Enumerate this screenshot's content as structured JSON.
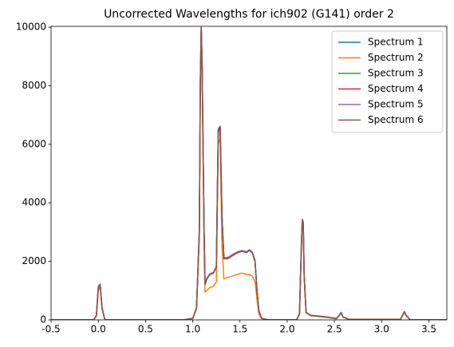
{
  "chart_data": {
    "type": "line",
    "title": "Uncorrected Wavelengths for ich902 (G141) order 2",
    "x": [
      -0.5,
      -0.05,
      -0.02,
      0.0,
      0.02,
      0.04,
      0.07,
      0.9,
      1.0,
      1.04,
      1.07,
      1.08,
      1.09,
      1.1,
      1.12,
      1.13,
      1.15,
      1.18,
      1.22,
      1.25,
      1.27,
      1.29,
      1.31,
      1.33,
      1.37,
      1.42,
      1.47,
      1.52,
      1.57,
      1.6,
      1.63,
      1.66,
      1.68,
      1.7,
      1.73,
      1.8,
      2.1,
      2.13,
      2.15,
      2.16,
      2.17,
      2.18,
      2.2,
      2.25,
      2.35,
      2.45,
      2.52,
      2.55,
      2.57,
      2.59,
      2.65,
      3.2,
      3.22,
      3.24,
      3.26,
      3.3,
      3.69
    ],
    "series": [
      {
        "name": "Spectrum 1",
        "color": "#1f77b4",
        "values": [
          0,
          0,
          150,
          1100,
          1200,
          400,
          0,
          0,
          50,
          400,
          3000,
          8000,
          10000,
          8500,
          3000,
          1200,
          1400,
          1550,
          1600,
          1800,
          6500,
          6600,
          3500,
          2100,
          2100,
          2200,
          2300,
          2350,
          2300,
          2380,
          2300,
          2000,
          1000,
          300,
          50,
          0,
          0,
          200,
          2500,
          3400,
          3300,
          1500,
          250,
          150,
          120,
          80,
          40,
          150,
          250,
          100,
          20,
          20,
          150,
          280,
          150,
          10,
          0
        ]
      },
      {
        "name": "Spectrum 2",
        "color": "#ff7f0e",
        "values": [
          0,
          0,
          120,
          1000,
          1150,
          380,
          0,
          0,
          40,
          380,
          2900,
          7800,
          9800,
          8300,
          2600,
          950,
          1000,
          1100,
          1150,
          1300,
          6000,
          6200,
          2500,
          1400,
          1450,
          1500,
          1550,
          1600,
          1550,
          1550,
          1500,
          1300,
          700,
          200,
          40,
          0,
          0,
          180,
          2400,
          3300,
          3200,
          1400,
          240,
          140,
          110,
          70,
          40,
          140,
          240,
          90,
          20,
          20,
          140,
          270,
          140,
          10,
          0
        ]
      },
      {
        "name": "Spectrum 3",
        "color": "#2ca02c",
        "values": [
          0,
          0,
          140,
          1120,
          1220,
          410,
          0,
          0,
          50,
          410,
          3050,
          8100,
          10000,
          8450,
          3050,
          1250,
          1420,
          1560,
          1620,
          1820,
          6450,
          6550,
          3450,
          2120,
          2110,
          2210,
          2310,
          2360,
          2320,
          2390,
          2310,
          2010,
          1010,
          310,
          50,
          0,
          0,
          210,
          2550,
          3420,
          3300,
          1520,
          260,
          150,
          120,
          80,
          40,
          150,
          250,
          100,
          20,
          20,
          150,
          280,
          150,
          10,
          0
        ]
      },
      {
        "name": "Spectrum 4",
        "color": "#d62728",
        "values": [
          0,
          0,
          150,
          1080,
          1190,
          390,
          0,
          0,
          50,
          400,
          3000,
          7950,
          10000,
          8550,
          3000,
          1220,
          1410,
          1540,
          1610,
          1790,
          6480,
          6580,
          3480,
          2090,
          2090,
          2190,
          2290,
          2340,
          2310,
          2370,
          2290,
          1990,
          990,
          300,
          50,
          0,
          0,
          200,
          2480,
          3380,
          3280,
          1480,
          250,
          150,
          120,
          80,
          40,
          150,
          250,
          100,
          20,
          20,
          150,
          280,
          150,
          10,
          0
        ]
      },
      {
        "name": "Spectrum 5",
        "color": "#9467bd",
        "values": [
          0,
          0,
          160,
          1150,
          1230,
          420,
          0,
          0,
          60,
          420,
          3100,
          8200,
          10000,
          8700,
          3100,
          1260,
          1430,
          1570,
          1630,
          1830,
          6400,
          6500,
          3550,
          2130,
          2130,
          2230,
          2320,
          2370,
          2330,
          2400,
          2320,
          2030,
          1030,
          320,
          60,
          0,
          0,
          220,
          2600,
          3450,
          3350,
          1550,
          260,
          160,
          130,
          90,
          50,
          160,
          260,
          110,
          20,
          20,
          160,
          290,
          160,
          10,
          0
        ]
      },
      {
        "name": "Spectrum 6",
        "color": "#8c564b",
        "values": [
          0,
          0,
          150,
          1100,
          1200,
          400,
          0,
          0,
          50,
          400,
          3000,
          8050,
          10000,
          8500,
          3000,
          1230,
          1400,
          1550,
          1600,
          1800,
          6520,
          6620,
          3500,
          2100,
          2100,
          2200,
          2300,
          2350,
          2300,
          2380,
          2300,
          2000,
          1000,
          300,
          50,
          0,
          0,
          200,
          2500,
          3400,
          3300,
          1500,
          250,
          150,
          120,
          80,
          40,
          150,
          250,
          100,
          20,
          20,
          150,
          280,
          150,
          10,
          0
        ]
      }
    ],
    "xlim": [
      -0.5,
      3.69
    ],
    "ylim": [
      0,
      10030
    ],
    "xticks": [
      -0.5,
      {
        "value": 0,
        "label": "0.0"
      },
      0.5,
      {
        "value": 1,
        "label": "1.0"
      },
      1.5,
      {
        "value": 2,
        "label": "2.0"
      },
      2.5,
      {
        "value": 3,
        "label": "3.0"
      },
      3.5
    ],
    "yticks": [
      0,
      2000,
      4000,
      6000,
      8000,
      10000
    ],
    "legend": "upper right"
  }
}
